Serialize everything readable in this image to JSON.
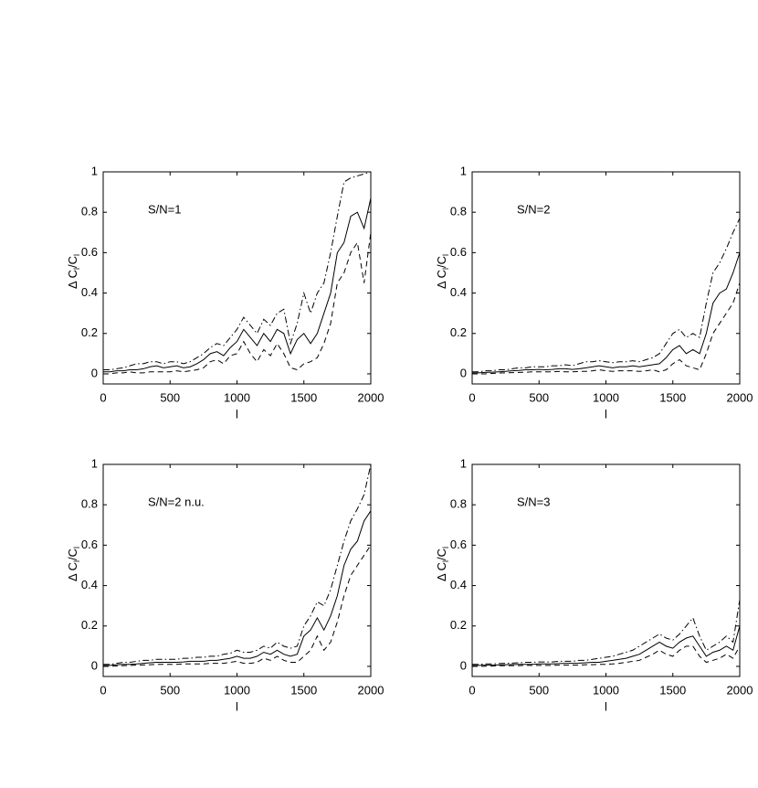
{
  "chart_data": [
    {
      "type": "line",
      "annotation": "S/N=1",
      "xlabel": "l",
      "ylabel": [
        "Δ C",
        "l",
        "/C",
        "l"
      ],
      "xlim": [
        0,
        2000
      ],
      "ylim": [
        -0.05,
        1
      ],
      "xticks": [
        0,
        500,
        1000,
        1500,
        2000
      ],
      "yticks": [
        0,
        0.2,
        0.4,
        0.6,
        0.8,
        1
      ],
      "x": [
        0,
        50,
        100,
        150,
        200,
        250,
        300,
        350,
        400,
        450,
        500,
        550,
        600,
        650,
        700,
        750,
        800,
        850,
        900,
        950,
        1000,
        1050,
        1100,
        1150,
        1200,
        1250,
        1300,
        1350,
        1400,
        1450,
        1500,
        1550,
        1600,
        1650,
        1700,
        1750,
        1800,
        1850,
        1900,
        1950,
        2000
      ],
      "series": [
        {
          "color": "#000000",
          "style": "solid",
          "values": [
            0.01,
            0.01,
            0.015,
            0.015,
            0.02,
            0.02,
            0.025,
            0.035,
            0.04,
            0.03,
            0.035,
            0.04,
            0.03,
            0.035,
            0.05,
            0.07,
            0.1,
            0.11,
            0.09,
            0.13,
            0.16,
            0.22,
            0.18,
            0.14,
            0.2,
            0.16,
            0.22,
            0.2,
            0.1,
            0.17,
            0.2,
            0.15,
            0.2,
            0.3,
            0.4,
            0.6,
            0.65,
            0.78,
            0.8,
            0.72,
            0.87
          ]
        },
        {
          "color": "#000000",
          "style": "dashdot",
          "values": [
            0.02,
            0.02,
            0.025,
            0.03,
            0.04,
            0.05,
            0.05,
            0.06,
            0.06,
            0.05,
            0.06,
            0.06,
            0.05,
            0.06,
            0.08,
            0.1,
            0.13,
            0.15,
            0.14,
            0.18,
            0.22,
            0.28,
            0.24,
            0.2,
            0.27,
            0.24,
            0.3,
            0.32,
            0.15,
            0.25,
            0.4,
            0.3,
            0.4,
            0.45,
            0.6,
            0.78,
            0.95,
            0.97,
            0.98,
            0.99,
            1.0
          ]
        },
        {
          "color": "#000000",
          "style": "dashed",
          "values": [
            0,
            0,
            0.005,
            0.005,
            0.01,
            0.005,
            0.005,
            0.01,
            0.01,
            0.01,
            0.01,
            0.015,
            0.01,
            0.015,
            0.02,
            0.03,
            0.06,
            0.07,
            0.05,
            0.09,
            0.1,
            0.16,
            0.1,
            0.06,
            0.12,
            0.09,
            0.15,
            0.1,
            0.03,
            0.02,
            0.05,
            0.06,
            0.08,
            0.15,
            0.25,
            0.45,
            0.5,
            0.6,
            0.65,
            0.45,
            0.7
          ]
        }
      ]
    },
    {
      "type": "line",
      "annotation": "S/N=2",
      "xlabel": "l",
      "ylabel": [
        "Δ C",
        "l",
        "/C",
        "l"
      ],
      "xlim": [
        0,
        2000
      ],
      "ylim": [
        -0.05,
        1
      ],
      "xticks": [
        0,
        500,
        1000,
        1500,
        2000
      ],
      "yticks": [
        0,
        0.2,
        0.4,
        0.6,
        0.8,
        1
      ],
      "x": [
        0,
        50,
        100,
        150,
        200,
        250,
        300,
        350,
        400,
        450,
        500,
        550,
        600,
        650,
        700,
        750,
        800,
        850,
        900,
        950,
        1000,
        1050,
        1100,
        1150,
        1200,
        1250,
        1300,
        1350,
        1400,
        1450,
        1500,
        1550,
        1600,
        1650,
        1700,
        1750,
        1800,
        1850,
        1900,
        1950,
        2000
      ],
      "series": [
        {
          "color": "#000000",
          "style": "solid",
          "values": [
            0.005,
            0.005,
            0.007,
            0.008,
            0.01,
            0.012,
            0.015,
            0.017,
            0.02,
            0.02,
            0.022,
            0.02,
            0.022,
            0.025,
            0.025,
            0.022,
            0.025,
            0.03,
            0.035,
            0.04,
            0.035,
            0.03,
            0.035,
            0.035,
            0.04,
            0.035,
            0.04,
            0.045,
            0.05,
            0.08,
            0.12,
            0.14,
            0.1,
            0.12,
            0.1,
            0.2,
            0.35,
            0.4,
            0.42,
            0.5,
            0.6
          ]
        },
        {
          "color": "#000000",
          "style": "dashdot",
          "values": [
            0.01,
            0.01,
            0.015,
            0.015,
            0.02,
            0.02,
            0.025,
            0.03,
            0.03,
            0.035,
            0.035,
            0.035,
            0.04,
            0.04,
            0.045,
            0.04,
            0.05,
            0.06,
            0.06,
            0.065,
            0.06,
            0.055,
            0.06,
            0.06,
            0.065,
            0.06,
            0.07,
            0.08,
            0.1,
            0.15,
            0.2,
            0.22,
            0.18,
            0.2,
            0.18,
            0.35,
            0.5,
            0.55,
            0.62,
            0.7,
            0.77
          ]
        },
        {
          "color": "#000000",
          "style": "dashed",
          "values": [
            0,
            0,
            0,
            0.002,
            0.004,
            0.005,
            0.006,
            0.007,
            0.008,
            0.01,
            0.01,
            0.01,
            0.01,
            0.012,
            0.01,
            0.01,
            0.012,
            0.012,
            0.015,
            0.02,
            0.015,
            0.012,
            0.015,
            0.015,
            0.015,
            0.012,
            0.015,
            0.02,
            0.01,
            0.02,
            0.05,
            0.07,
            0.04,
            0.03,
            0.02,
            0.1,
            0.2,
            0.25,
            0.3,
            0.35,
            0.45
          ]
        }
      ]
    },
    {
      "type": "line",
      "annotation": "S/N=2 n.u.",
      "xlabel": "l",
      "ylabel": [
        "Δ C",
        "l",
        "/C",
        "l"
      ],
      "xlim": [
        0,
        2000
      ],
      "ylim": [
        -0.05,
        1
      ],
      "xticks": [
        0,
        500,
        1000,
        1500,
        2000
      ],
      "yticks": [
        0,
        0.2,
        0.4,
        0.6,
        0.8,
        1
      ],
      "x": [
        0,
        50,
        100,
        150,
        200,
        250,
        300,
        350,
        400,
        450,
        500,
        550,
        600,
        650,
        700,
        750,
        800,
        850,
        900,
        950,
        1000,
        1050,
        1100,
        1150,
        1200,
        1250,
        1300,
        1350,
        1400,
        1450,
        1500,
        1550,
        1600,
        1650,
        1700,
        1750,
        1800,
        1850,
        1900,
        1950,
        2000
      ],
      "series": [
        {
          "color": "#000000",
          "style": "solid",
          "values": [
            0.005,
            0.005,
            0.008,
            0.01,
            0.01,
            0.012,
            0.015,
            0.018,
            0.02,
            0.02,
            0.02,
            0.02,
            0.022,
            0.025,
            0.025,
            0.025,
            0.03,
            0.03,
            0.035,
            0.04,
            0.05,
            0.04,
            0.04,
            0.05,
            0.07,
            0.06,
            0.08,
            0.06,
            0.05,
            0.06,
            0.15,
            0.18,
            0.24,
            0.18,
            0.25,
            0.35,
            0.5,
            0.58,
            0.62,
            0.72,
            0.77
          ]
        },
        {
          "color": "#000000",
          "style": "dashdot",
          "values": [
            0.01,
            0.01,
            0.015,
            0.02,
            0.02,
            0.025,
            0.03,
            0.03,
            0.035,
            0.035,
            0.035,
            0.035,
            0.04,
            0.04,
            0.045,
            0.045,
            0.05,
            0.05,
            0.06,
            0.065,
            0.08,
            0.07,
            0.07,
            0.08,
            0.1,
            0.09,
            0.12,
            0.1,
            0.09,
            0.1,
            0.2,
            0.25,
            0.32,
            0.3,
            0.38,
            0.5,
            0.62,
            0.72,
            0.78,
            0.85,
            1.0
          ]
        },
        {
          "color": "#000000",
          "style": "dashed",
          "values": [
            0,
            0,
            0.002,
            0.004,
            0.005,
            0.006,
            0.007,
            0.008,
            0.01,
            0.01,
            0.01,
            0.01,
            0.012,
            0.012,
            0.012,
            0.012,
            0.015,
            0.015,
            0.015,
            0.02,
            0.025,
            0.015,
            0.015,
            0.02,
            0.04,
            0.03,
            0.05,
            0.03,
            0.02,
            0.02,
            0.05,
            0.08,
            0.15,
            0.08,
            0.12,
            0.22,
            0.35,
            0.45,
            0.5,
            0.55,
            0.6
          ]
        }
      ]
    },
    {
      "type": "line",
      "annotation": "S/N=3",
      "xlabel": "l",
      "ylabel": [
        "Δ C",
        "l",
        "/C",
        "l"
      ],
      "xlim": [
        0,
        2000
      ],
      "ylim": [
        -0.05,
        1
      ],
      "xticks": [
        0,
        500,
        1000,
        1500,
        2000
      ],
      "yticks": [
        0,
        0.2,
        0.4,
        0.6,
        0.8,
        1
      ],
      "x": [
        0,
        50,
        100,
        150,
        200,
        250,
        300,
        350,
        400,
        450,
        500,
        550,
        600,
        650,
        700,
        750,
        800,
        850,
        900,
        950,
        1000,
        1050,
        1100,
        1150,
        1200,
        1250,
        1300,
        1350,
        1400,
        1450,
        1500,
        1550,
        1600,
        1650,
        1700,
        1750,
        1800,
        1850,
        1900,
        1950,
        2000
      ],
      "series": [
        {
          "color": "#000000",
          "style": "solid",
          "values": [
            0.005,
            0.005,
            0.006,
            0.006,
            0.007,
            0.008,
            0.009,
            0.01,
            0.01,
            0.01,
            0.012,
            0.012,
            0.012,
            0.014,
            0.015,
            0.015,
            0.016,
            0.018,
            0.02,
            0.02,
            0.025,
            0.03,
            0.035,
            0.04,
            0.05,
            0.06,
            0.08,
            0.1,
            0.12,
            0.1,
            0.09,
            0.12,
            0.14,
            0.15,
            0.1,
            0.05,
            0.07,
            0.08,
            0.1,
            0.08,
            0.2
          ]
        },
        {
          "color": "#000000",
          "style": "dashdot",
          "values": [
            0.01,
            0.01,
            0.012,
            0.012,
            0.014,
            0.015,
            0.016,
            0.018,
            0.02,
            0.02,
            0.022,
            0.022,
            0.022,
            0.025,
            0.025,
            0.025,
            0.03,
            0.03,
            0.035,
            0.04,
            0.045,
            0.05,
            0.06,
            0.07,
            0.08,
            0.1,
            0.12,
            0.14,
            0.16,
            0.14,
            0.13,
            0.16,
            0.2,
            0.24,
            0.15,
            0.08,
            0.1,
            0.12,
            0.15,
            0.12,
            0.33
          ]
        },
        {
          "color": "#000000",
          "style": "dashed",
          "values": [
            0,
            0,
            0.001,
            0.002,
            0.003,
            0.003,
            0.004,
            0.004,
            0.005,
            0.005,
            0.005,
            0.005,
            0.005,
            0.006,
            0.006,
            0.006,
            0.007,
            0.008,
            0.008,
            0.01,
            0.01,
            0.012,
            0.015,
            0.02,
            0.025,
            0.03,
            0.045,
            0.06,
            0.08,
            0.06,
            0.05,
            0.08,
            0.1,
            0.1,
            0.05,
            0.02,
            0.03,
            0.04,
            0.06,
            0.04,
            0.1
          ]
        }
      ]
    }
  ]
}
